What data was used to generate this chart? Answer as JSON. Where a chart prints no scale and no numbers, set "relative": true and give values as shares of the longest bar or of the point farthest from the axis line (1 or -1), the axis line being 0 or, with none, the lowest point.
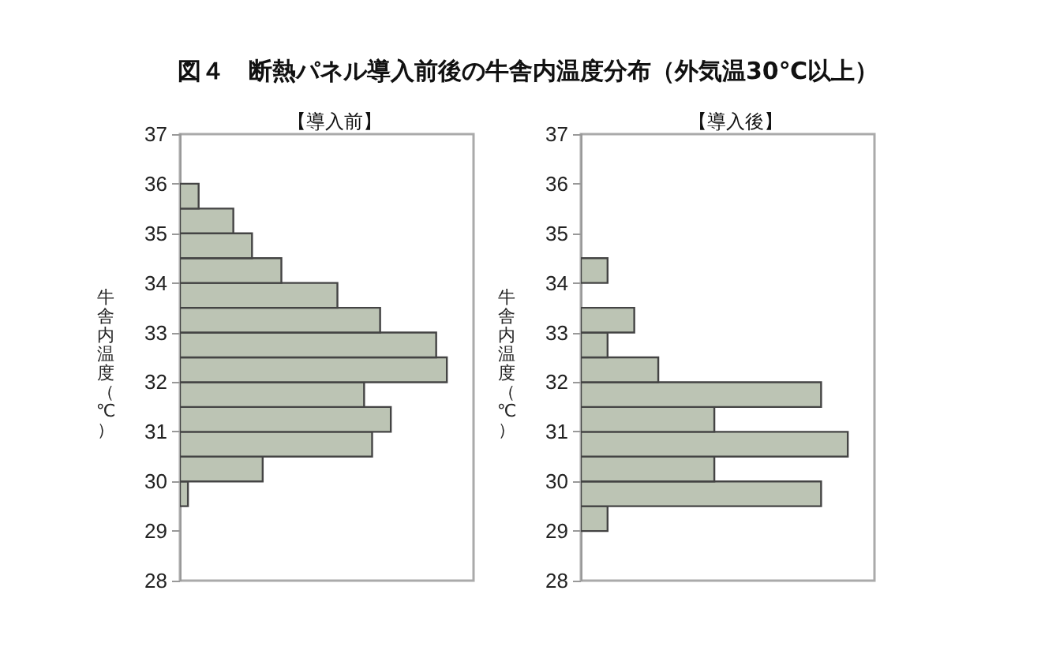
{
  "chart_data": [
    {
      "type": "bar",
      "title": "図４　断熱パネル導入前後の牛舎内温度分布（外気温30℃以上）",
      "subtitle": "【導入前】",
      "ylabel": "牛舎内温度（℃）",
      "orientation": "horizontal",
      "relative": true,
      "color": "#bcc4b4",
      "x": [
        29.75,
        30.25,
        30.75,
        31.25,
        31.75,
        32.25,
        32.75,
        33.25,
        33.75,
        34.25,
        34.75,
        35.25,
        35.75
      ],
      "values": [
        0.03,
        0.31,
        0.72,
        0.79,
        0.69,
        1,
        0.96,
        0.75,
        0.59,
        0.38,
        0.27,
        0.2,
        0.07
      ],
      "ylim": [
        28,
        37
      ],
      "yticks": [
        28,
        29,
        30,
        31,
        32,
        33,
        34,
        35,
        36,
        37
      ],
      "tick_labels": "y"
    },
    {
      "type": "bar",
      "subtitle": "【導入後】",
      "ylabel": "牛舎内温度（℃）",
      "orientation": "horizontal",
      "relative": true,
      "color": "#bcc4b4",
      "x": [
        29.25,
        29.75,
        30.25,
        30.75,
        31.25,
        31.75,
        32.25,
        32.75,
        33.25,
        33.75,
        34.25
      ],
      "values": [
        0.1,
        0.9,
        0.5,
        1,
        0.5,
        0.9,
        0.29,
        0.1,
        0.2,
        null,
        0.1
      ],
      "ylim": [
        28,
        37
      ],
      "yticks": [
        28,
        29,
        30,
        31,
        32,
        33,
        34,
        35,
        36,
        37
      ],
      "tick_labels": "y"
    }
  ]
}
